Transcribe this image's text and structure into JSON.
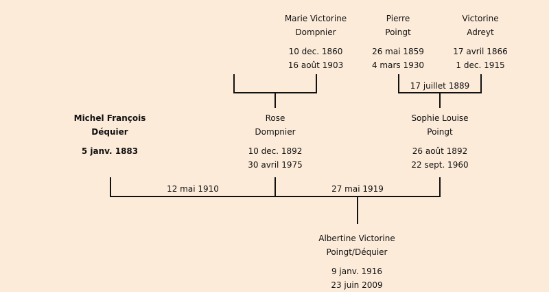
{
  "background_color": "#fcebd9",
  "people": {
    "marie": {
      "name1": "Marie Victorine",
      "name2": "Dompnier",
      "birth": "10 dec. 1860",
      "death": "16 août 1903"
    },
    "pierre": {
      "name1": "Pierre",
      "name2": "Poingt",
      "birth": "26 mai 1859",
      "death": "4 mars 1930"
    },
    "victorine": {
      "name1": "Victorine",
      "name2": "Adreyt",
      "birth": "17 avril 1866",
      "death": "1 dec. 1915"
    },
    "michel": {
      "name1": "Michel François",
      "name2": "Déquier",
      "birth": "5 janv. 1883"
    },
    "rose": {
      "name1": "Rose",
      "name2": "Dompnier",
      "birth": "10 dec. 1892",
      "death": "30 avril 1975"
    },
    "sophie": {
      "name1": "Sophie Louise",
      "name2": "Poingt",
      "birth": "26 août 1892",
      "death": "22 sept. 1960"
    },
    "albertine": {
      "name1": "Albertine Victorine",
      "name2": "Poingt/Déquier",
      "birth": "9 janv. 1916",
      "death": "23 juin 2009"
    }
  },
  "marriages": {
    "pierre_victorine": "17 juillet 1889",
    "michel_rose": "12 mai 1910",
    "michel_sophie": "27 mai 1919"
  }
}
